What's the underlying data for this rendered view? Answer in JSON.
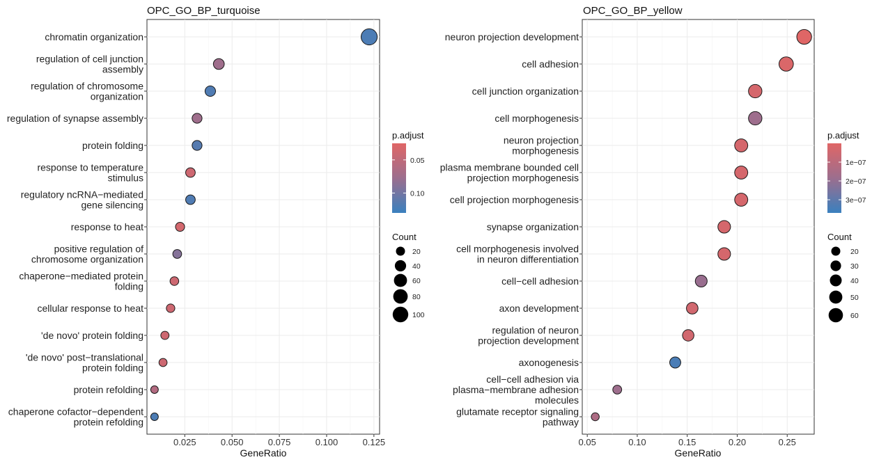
{
  "chart_data": [
    {
      "type": "scatter",
      "title": "OPC_GO_BP_turquoise",
      "xlabel": "GeneRatio",
      "ylabel": "",
      "xlim": [
        0.005,
        0.128
      ],
      "x_ticks": [
        0.025,
        0.05,
        0.075,
        0.1,
        0.125
      ],
      "x_tick_labels": [
        "0.025",
        "0.050",
        "0.075",
        "0.100",
        "0.125"
      ],
      "grid": true,
      "terms": [
        {
          "label": [
            "chromatin organization"
          ],
          "gene_ratio": 0.1225,
          "p_adjust": 0.12,
          "count": 108
        },
        {
          "label": [
            "regulation of cell junction",
            "assembly"
          ],
          "gene_ratio": 0.043,
          "p_adjust": 0.075,
          "count": 38
        },
        {
          "label": [
            "regulation of chromosome",
            "organization"
          ],
          "gene_ratio": 0.0385,
          "p_adjust": 0.118,
          "count": 34
        },
        {
          "label": [
            "regulation of synapse assembly"
          ],
          "gene_ratio": 0.0315,
          "p_adjust": 0.075,
          "count": 28
        },
        {
          "label": [
            "protein folding"
          ],
          "gene_ratio": 0.0315,
          "p_adjust": 0.115,
          "count": 28
        },
        {
          "label": [
            "response to temperature",
            "stimulus"
          ],
          "gene_ratio": 0.028,
          "p_adjust": 0.04,
          "count": 25
        },
        {
          "label": [
            "regulatory ncRNA−mediated",
            "gene silencing"
          ],
          "gene_ratio": 0.028,
          "p_adjust": 0.118,
          "count": 25
        },
        {
          "label": [
            "response to heat"
          ],
          "gene_ratio": 0.0225,
          "p_adjust": 0.035,
          "count": 20
        },
        {
          "label": [
            "positive regulation of",
            "chromosome organization"
          ],
          "gene_ratio": 0.021,
          "p_adjust": 0.09,
          "count": 18
        },
        {
          "label": [
            "chaperone−mediated protein",
            "folding"
          ],
          "gene_ratio": 0.0195,
          "p_adjust": 0.04,
          "count": 17
        },
        {
          "label": [
            "cellular response to heat"
          ],
          "gene_ratio": 0.0175,
          "p_adjust": 0.04,
          "count": 15
        },
        {
          "label": [
            "'de novo' protein folding"
          ],
          "gene_ratio": 0.0145,
          "p_adjust": 0.04,
          "count": 13
        },
        {
          "label": [
            "'de novo' post−translational",
            "protein folding"
          ],
          "gene_ratio": 0.0135,
          "p_adjust": 0.04,
          "count": 12
        },
        {
          "label": [
            "protein refolding"
          ],
          "gene_ratio": 0.009,
          "p_adjust": 0.06,
          "count": 8
        },
        {
          "label": [
            "chaperone cofactor−dependent",
            "protein refolding"
          ],
          "gene_ratio": 0.009,
          "p_adjust": 0.12,
          "count": 8
        }
      ],
      "legend": {
        "placement": "right",
        "color_title": "p.adjust",
        "color_range": [
          0.025,
          0.13
        ],
        "color_ticks": [
          0.05,
          0.1
        ],
        "color_tick_labels": [
          "0.05",
          "0.10"
        ],
        "size_title": "Count",
        "size_values": [
          20,
          40,
          60,
          80,
          100
        ],
        "size_labels": [
          "20",
          "40",
          "60",
          "80",
          "100"
        ]
      },
      "colors": {
        "low": "#e06666",
        "mid": "#9c6e8e",
        "high": "#3a80be"
      }
    },
    {
      "type": "scatter",
      "title": "OPC_GO_BP_yellow",
      "xlabel": "GeneRatio",
      "ylabel": "",
      "xlim": [
        0.045,
        0.277
      ],
      "x_ticks": [
        0.05,
        0.1,
        0.15,
        0.2,
        0.25
      ],
      "x_tick_labels": [
        "0.05",
        "0.10",
        "0.15",
        "0.20",
        "0.25"
      ],
      "grid": true,
      "terms": [
        {
          "label": [
            "neuron projection development"
          ],
          "gene_ratio": 0.267,
          "p_adjust": 2e-09,
          "count": 64
        },
        {
          "label": [
            "cell adhesion"
          ],
          "gene_ratio": 0.249,
          "p_adjust": 1.5e-08,
          "count": 60
        },
        {
          "label": [
            "cell junction organization"
          ],
          "gene_ratio": 0.218,
          "p_adjust": 3e-08,
          "count": 52
        },
        {
          "label": [
            "cell morphogenesis"
          ],
          "gene_ratio": 0.218,
          "p_adjust": 1.8e-07,
          "count": 52
        },
        {
          "label": [
            "neuron projection",
            "morphogenesis"
          ],
          "gene_ratio": 0.204,
          "p_adjust": 3e-08,
          "count": 49
        },
        {
          "label": [
            "plasma membrane bounded cell",
            "projection morphogenesis"
          ],
          "gene_ratio": 0.204,
          "p_adjust": 3e-08,
          "count": 49
        },
        {
          "label": [
            "cell projection morphogenesis"
          ],
          "gene_ratio": 0.204,
          "p_adjust": 3e-08,
          "count": 49
        },
        {
          "label": [
            "synapse organization"
          ],
          "gene_ratio": 0.187,
          "p_adjust": 3e-08,
          "count": 45
        },
        {
          "label": [
            "cell morphogenesis involved",
            "in neuron differentiation"
          ],
          "gene_ratio": 0.187,
          "p_adjust": 3e-08,
          "count": 45
        },
        {
          "label": [
            "cell−cell adhesion"
          ],
          "gene_ratio": 0.164,
          "p_adjust": 1.9e-07,
          "count": 39
        },
        {
          "label": [
            "axon development"
          ],
          "gene_ratio": 0.155,
          "p_adjust": 4e-08,
          "count": 37
        },
        {
          "label": [
            "regulation of neuron",
            "projection development"
          ],
          "gene_ratio": 0.151,
          "p_adjust": 4e-08,
          "count": 36
        },
        {
          "label": [
            "axonogenesis"
          ],
          "gene_ratio": 0.138,
          "p_adjust": 3.4e-07,
          "count": 33
        },
        {
          "label": [
            "cell−cell adhesion via",
            "plasma−membrane adhesion",
            "molecules"
          ],
          "gene_ratio": 0.08,
          "p_adjust": 1.8e-07,
          "count": 19
        },
        {
          "label": [
            "glutamate receptor signaling",
            "pathway"
          ],
          "gene_ratio": 0.058,
          "p_adjust": 1.4e-07,
          "count": 14
        }
      ],
      "legend": {
        "placement": "right",
        "color_title": "p.adjust",
        "color_range": [
          0,
          3.7e-07
        ],
        "color_ticks": [
          1e-07,
          2e-07,
          3e-07
        ],
        "color_tick_labels": [
          "1e−07",
          "2e−07",
          "3e−07"
        ],
        "size_title": "Count",
        "size_values": [
          20,
          30,
          40,
          50,
          60
        ],
        "size_labels": [
          "20",
          "30",
          "40",
          "50",
          "60"
        ]
      },
      "colors": {
        "low": "#e06666",
        "mid": "#9c6e8e",
        "high": "#3a80be"
      }
    }
  ]
}
